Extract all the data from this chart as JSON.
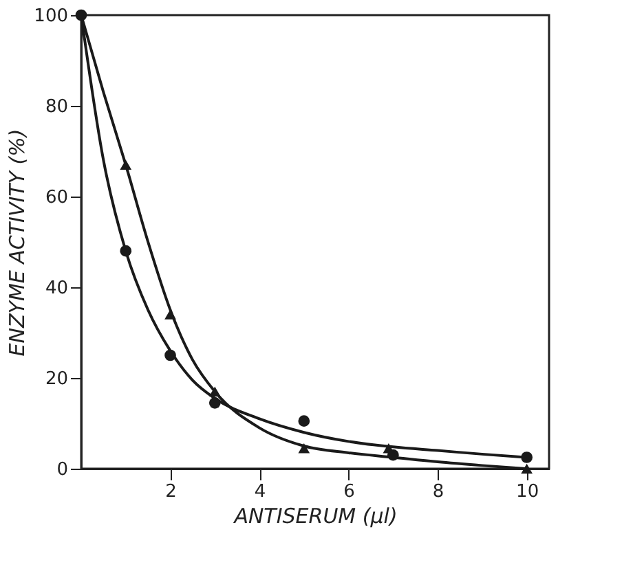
{
  "chart_data": {
    "type": "scatter",
    "xlabel": "ANTISERUM (µl)",
    "ylabel": "ENZYME ACTIVITY (%)",
    "xlim": [
      0,
      10.5
    ],
    "ylim": [
      0,
      100
    ],
    "xticks": [
      2,
      4,
      6,
      8,
      10
    ],
    "yticks": [
      0,
      20,
      40,
      60,
      80,
      100
    ],
    "grid": false,
    "series": [
      {
        "type": "line",
        "color": "#1a1a1a",
        "marker": "none",
        "x": [
          0,
          0.5,
          1,
          1.5,
          2,
          2.5,
          3,
          4,
          5,
          6,
          7,
          8,
          9,
          10
        ],
        "values": [
          100,
          68,
          48,
          35,
          26,
          19.5,
          15.5,
          11,
          8,
          6,
          4.8,
          4,
          3.2,
          2.5
        ]
      },
      {
        "type": "line",
        "color": "#1a1a1a",
        "marker": "none",
        "x": [
          0,
          0.5,
          1,
          1.5,
          2,
          2.5,
          3,
          4,
          5,
          6,
          7,
          8,
          9,
          10
        ],
        "values": [
          100,
          83,
          67,
          50,
          35,
          24,
          17,
          9,
          5,
          3.5,
          2.5,
          1.5,
          0.7,
          0
        ]
      },
      {
        "color": "#1a1a1a",
        "marker": "circle",
        "x": [
          0,
          1,
          2,
          3,
          5,
          7,
          10
        ],
        "values": [
          100,
          48,
          25,
          14.5,
          10.5,
          3,
          2.5
        ]
      },
      {
        "color": "#1a1a1a",
        "marker": "triangle",
        "x": [
          1,
          2,
          3,
          5,
          6.9,
          10
        ],
        "values": [
          67,
          34,
          17,
          4.5,
          4.5,
          0
        ]
      }
    ]
  }
}
